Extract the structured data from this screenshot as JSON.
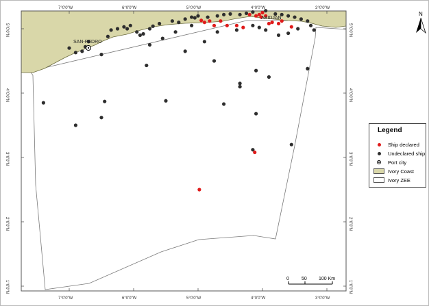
{
  "map": {
    "top_longitude_labels": [
      "7°0'0\"W",
      "6°0'0\"W",
      "5°0'0\"W",
      "4°0'0\"W",
      "3°0'0\"W"
    ],
    "bottom_longitude_labels": [
      "7°0'0\"W",
      "6°0'0\"W",
      "5°0'0\"W",
      "4°0'0\"W",
      "3°0'0\"W"
    ],
    "left_latitude_labels": [
      "5°0'0\"N",
      "4°0'0\"N",
      "3°0'0\"N",
      "2°0'0\"N",
      "1°0'0\"N"
    ],
    "right_latitude_labels": [
      "5°0'0\"N",
      "4°0'0\"N",
      "3°0'0\"N",
      "2°0'0\"N",
      "1°0'0\"N"
    ],
    "city_san_pedro": "SAN-PEDRO",
    "city_abidjan": "ABIDJAN",
    "north_label": "N",
    "scalebar": {
      "labels": [
        "0",
        "50",
        "100 Km"
      ]
    },
    "colors": {
      "land": "#d9d7a9",
      "ship_declared": "#e01b1b",
      "ship_undeclared": "#2e2e2e",
      "zee_fill": "#ffffff"
    }
  },
  "legend": {
    "title": "Legend",
    "items": [
      {
        "label": "Ship declared",
        "symbol": "red-dot"
      },
      {
        "label": "Undeclared ship",
        "symbol": "black-dot"
      },
      {
        "label": "Port city",
        "symbol": "port-icon"
      },
      {
        "label": "Ivory Coast",
        "symbol": "land-swatch"
      },
      {
        "label": "Ivory ZEE",
        "symbol": "zee-swatch"
      }
    ]
  },
  "ships": {
    "declared": [
      [
        -4.95,
        5.13
      ],
      [
        -4.9,
        5.1
      ],
      [
        -4.82,
        5.12
      ],
      [
        -4.75,
        5.05
      ],
      [
        -4.55,
        5.05
      ],
      [
        -4.4,
        5.05
      ],
      [
        -4.3,
        5.02
      ],
      [
        -4.1,
        5.2
      ],
      [
        -4.05,
        5.22
      ],
      [
        -4.0,
        5.25
      ],
      [
        -3.95,
        5.2
      ],
      [
        -3.9,
        5.08
      ],
      [
        -3.85,
        5.1
      ],
      [
        -3.75,
        5.08
      ],
      [
        -3.55,
        5.03
      ],
      [
        -4.12,
        3.08
      ],
      [
        -4.98,
        2.5
      ],
      [
        -4.65,
        5.12
      ],
      [
        -4.2,
        5.22
      ],
      [
        -4.02,
        5.18
      ],
      [
        -3.7,
        5.12
      ]
    ],
    "undeclared": [
      [
        -7.0,
        4.7
      ],
      [
        -6.9,
        4.63
      ],
      [
        -6.8,
        4.65
      ],
      [
        -6.75,
        4.72
      ],
      [
        -6.7,
        4.8
      ],
      [
        -6.4,
        4.88
      ],
      [
        -6.35,
        4.98
      ],
      [
        -6.25,
        5.0
      ],
      [
        -6.15,
        5.03
      ],
      [
        -6.1,
        5.0
      ],
      [
        -6.05,
        5.05
      ],
      [
        -5.95,
        4.95
      ],
      [
        -5.9,
        4.9
      ],
      [
        -5.85,
        4.92
      ],
      [
        -5.75,
        5.0
      ],
      [
        -5.7,
        5.04
      ],
      [
        -5.6,
        5.08
      ],
      [
        -5.4,
        5.12
      ],
      [
        -5.3,
        5.1
      ],
      [
        -5.2,
        5.15
      ],
      [
        -5.1,
        5.18
      ],
      [
        -5.05,
        5.17
      ],
      [
        -5.0,
        5.2
      ],
      [
        -4.85,
        5.18
      ],
      [
        -4.7,
        5.2
      ],
      [
        -4.6,
        5.22
      ],
      [
        -4.5,
        5.23
      ],
      [
        -4.35,
        5.22
      ],
      [
        -4.25,
        5.24
      ],
      [
        -4.15,
        5.26
      ],
      [
        -3.8,
        5.23
      ],
      [
        -3.7,
        5.22
      ],
      [
        -3.6,
        5.2
      ],
      [
        -3.5,
        5.18
      ],
      [
        -3.4,
        5.15
      ],
      [
        -3.3,
        5.12
      ],
      [
        -3.25,
        5.05
      ],
      [
        -3.2,
        4.98
      ],
      [
        -3.45,
        5.0
      ],
      [
        -3.6,
        4.93
      ],
      [
        -3.75,
        4.9
      ],
      [
        -3.95,
        4.98
      ],
      [
        -4.05,
        5.02
      ],
      [
        -4.15,
        5.05
      ],
      [
        -4.4,
        4.98
      ],
      [
        -4.7,
        4.95
      ],
      [
        -5.1,
        5.05
      ],
      [
        -5.35,
        4.95
      ],
      [
        -5.55,
        4.85
      ],
      [
        -5.75,
        4.75
      ],
      [
        -4.9,
        4.8
      ],
      [
        -5.2,
        4.65
      ],
      [
        -4.75,
        4.5
      ],
      [
        -5.8,
        4.43
      ],
      [
        -6.5,
        4.6
      ],
      [
        -4.1,
        4.35
      ],
      [
        -3.9,
        4.25
      ],
      [
        -4.35,
        4.15
      ],
      [
        -4.35,
        4.1
      ],
      [
        -3.3,
        4.38
      ],
      [
        -7.4,
        3.85
      ],
      [
        -6.45,
        3.87
      ],
      [
        -5.5,
        3.88
      ],
      [
        -4.6,
        3.83
      ],
      [
        -4.1,
        3.68
      ],
      [
        -6.5,
        3.62
      ],
      [
        -6.9,
        3.5
      ],
      [
        -3.55,
        3.2
      ],
      [
        -4.15,
        3.12
      ],
      [
        -3.95,
        5.28
      ]
    ]
  }
}
